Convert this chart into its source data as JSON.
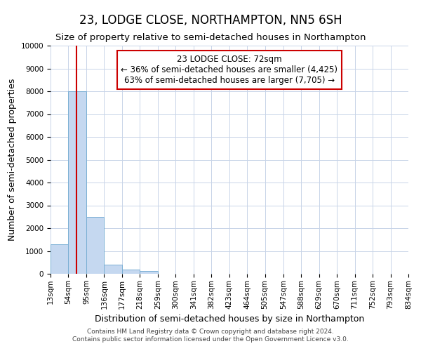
{
  "title": "23, LODGE CLOSE, NORTHAMPTON, NN5 6SH",
  "subtitle": "Size of property relative to semi-detached houses in Northampton",
  "xlabel": "Distribution of semi-detached houses by size in Northampton",
  "ylabel": "Number of semi-detached properties",
  "footer_line1": "Contains HM Land Registry data © Crown copyright and database right 2024.",
  "footer_line2": "Contains public sector information licensed under the Open Government Licence v3.0.",
  "bin_labels": [
    "13sqm",
    "54sqm",
    "95sqm",
    "136sqm",
    "177sqm",
    "218sqm",
    "259sqm",
    "300sqm",
    "341sqm",
    "382sqm",
    "423sqm",
    "464sqm",
    "505sqm",
    "547sqm",
    "588sqm",
    "629sqm",
    "670sqm",
    "711sqm",
    "752sqm",
    "793sqm",
    "834sqm"
  ],
  "bar_values": [
    1300,
    8000,
    2500,
    400,
    175,
    120,
    0,
    0,
    0,
    0,
    0,
    0,
    0,
    0,
    0,
    0,
    0,
    0,
    0,
    0
  ],
  "bin_edges": [
    13,
    54,
    95,
    136,
    177,
    218,
    259,
    300,
    341,
    382,
    423,
    464,
    505,
    547,
    588,
    629,
    670,
    711,
    752,
    793,
    834
  ],
  "property_size": 72,
  "property_label": "23 LODGE CLOSE: 72sqm",
  "pct_smaller": 36,
  "pct_larger": 63,
  "count_smaller": 4425,
  "count_larger": 7705,
  "bar_color": "#c5d8f0",
  "bar_edge_color": "#7aafd4",
  "vline_color": "#cc0000",
  "annotation_box_edge": "#cc0000",
  "background_color": "#ffffff",
  "grid_color": "#c8d4e8",
  "ylim": [
    0,
    10000
  ],
  "yticks": [
    0,
    1000,
    2000,
    3000,
    4000,
    5000,
    6000,
    7000,
    8000,
    9000,
    10000
  ],
  "title_fontsize": 12,
  "subtitle_fontsize": 9.5,
  "axis_label_fontsize": 9,
  "tick_fontsize": 7.5,
  "annotation_fontsize": 8.5,
  "footer_fontsize": 6.5
}
